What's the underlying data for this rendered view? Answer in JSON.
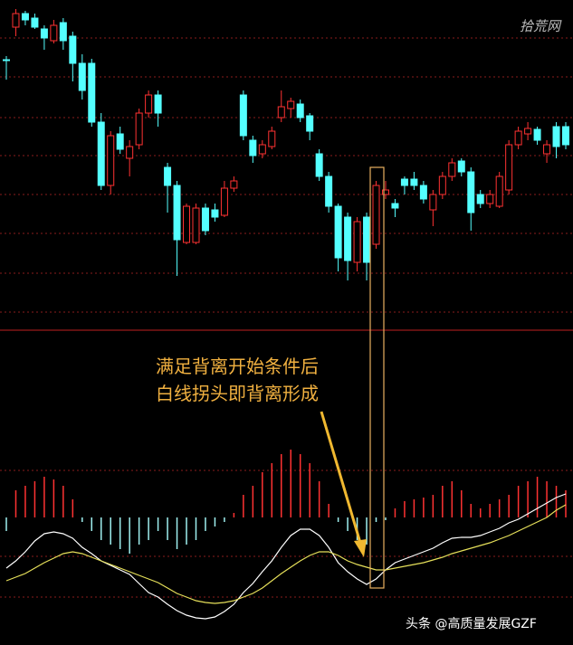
{
  "watermark": "拾荒网",
  "footer": "头条 @高质量发展GZF",
  "chart_data": [
    {
      "type": "candlestick",
      "ylim": [
        40,
        400
      ],
      "up_color": "#ff3232",
      "down_color": "#54ffff",
      "open": [
        334,
        370,
        385,
        380,
        368,
        355,
        375,
        360,
        330,
        330,
        265,
        195,
        252,
        225,
        240,
        275,
        295,
        215,
        195,
        132,
        132,
        170,
        168,
        162,
        192,
        295,
        245,
        230,
        238,
        270,
        280,
        285,
        272,
        230,
        205,
        172,
        160,
        110,
        160,
        130,
        185,
        175,
        202,
        202,
        195,
        168,
        185,
        205,
        222,
        210,
        185,
        175,
        172,
        190,
        240,
        252,
        257,
        230,
        260,
        260
      ],
      "high": [
        338,
        390,
        388,
        385,
        372,
        378,
        380,
        365,
        340,
        335,
        275,
        255,
        260,
        245,
        280,
        300,
        300,
        220,
        200,
        175,
        175,
        175,
        175,
        200,
        205,
        300,
        250,
        245,
        260,
        300,
        292,
        290,
        275,
        235,
        210,
        175,
        165,
        160,
        165,
        200,
        200,
        180,
        205,
        210,
        200,
        190,
        210,
        225,
        225,
        215,
        190,
        190,
        210,
        245,
        260,
        265,
        260,
        245,
        265,
        265
      ],
      "low": [
        312,
        360,
        372,
        368,
        345,
        352,
        345,
        310,
        290,
        260,
        190,
        185,
        230,
        205,
        235,
        270,
        260,
        165,
        95,
        130,
        130,
        140,
        155,
        160,
        188,
        245,
        220,
        225,
        235,
        265,
        270,
        265,
        245,
        200,
        165,
        100,
        90,
        100,
        90,
        125,
        180,
        160,
        185,
        190,
        175,
        150,
        180,
        200,
        205,
        145,
        170,
        170,
        170,
        185,
        235,
        245,
        240,
        220,
        225,
        235
      ],
      "close": [
        333,
        385,
        378,
        370,
        358,
        372,
        355,
        330,
        300,
        265,
        195,
        250,
        235,
        238,
        275,
        295,
        275,
        195,
        135,
        172,
        170,
        145,
        160,
        192,
        200,
        250,
        228,
        240,
        255,
        282,
        288,
        270,
        255,
        205,
        172,
        115,
        112,
        155,
        110,
        195,
        190,
        170,
        195,
        195,
        180,
        185,
        205,
        220,
        210,
        165,
        175,
        185,
        205,
        240,
        255,
        258,
        245,
        240,
        238,
        240
      ]
    },
    {
      "type": "macd",
      "ylim": [
        -141,
        132
      ],
      "annotations": [
        "满足背离开始条件后",
        "白线拐头即背离形成"
      ],
      "pos_color": "#ff3232",
      "neg_color": "#9ff0f0",
      "dif_color": "#ffffff",
      "dea_color": "#e6e05a",
      "histogram": [
        -15,
        30,
        35,
        40,
        45,
        42,
        35,
        20,
        -5,
        -15,
        -25,
        -30,
        -35,
        -40,
        -30,
        -25,
        -15,
        -25,
        -35,
        -30,
        -25,
        -15,
        -10,
        -5,
        5,
        25,
        35,
        50,
        60,
        70,
        75,
        70,
        60,
        40,
        15,
        -5,
        -15,
        -25,
        -30,
        -5,
        -3,
        10,
        18,
        20,
        22,
        25,
        35,
        40,
        30,
        15,
        10,
        15,
        20,
        25,
        35,
        40,
        45,
        40,
        35,
        30
      ],
      "dif": [
        -56,
        -48,
        -38,
        -26,
        -18,
        -16,
        -18,
        -23,
        -33,
        -40,
        -48,
        -53,
        -58,
        -63,
        -73,
        -83,
        -88,
        -96,
        -103,
        -108,
        -111,
        -112,
        -110,
        -104,
        -96,
        -83,
        -73,
        -60,
        -48,
        -33,
        -20,
        -13,
        -13,
        -20,
        -33,
        -50,
        -60,
        -68,
        -74,
        -68,
        -58,
        -50,
        -46,
        -42,
        -38,
        -34,
        -28,
        -23,
        -22,
        -22,
        -20,
        -16,
        -12,
        -6,
        -2,
        4,
        10,
        16,
        22,
        26
      ],
      "dea": [
        -70,
        -66,
        -62,
        -56,
        -50,
        -45,
        -40,
        -38,
        -40,
        -44,
        -48,
        -52,
        -56,
        -60,
        -64,
        -68,
        -72,
        -78,
        -84,
        -88,
        -92,
        -94,
        -95,
        -94,
        -92,
        -88,
        -84,
        -78,
        -70,
        -62,
        -55,
        -48,
        -42,
        -38,
        -38,
        -42,
        -48,
        -52,
        -55,
        -58,
        -58,
        -56,
        -54,
        -52,
        -50,
        -47,
        -44,
        -40,
        -37,
        -34,
        -31,
        -28,
        -24,
        -20,
        -15,
        -10,
        -5,
        0,
        8,
        14
      ]
    }
  ]
}
